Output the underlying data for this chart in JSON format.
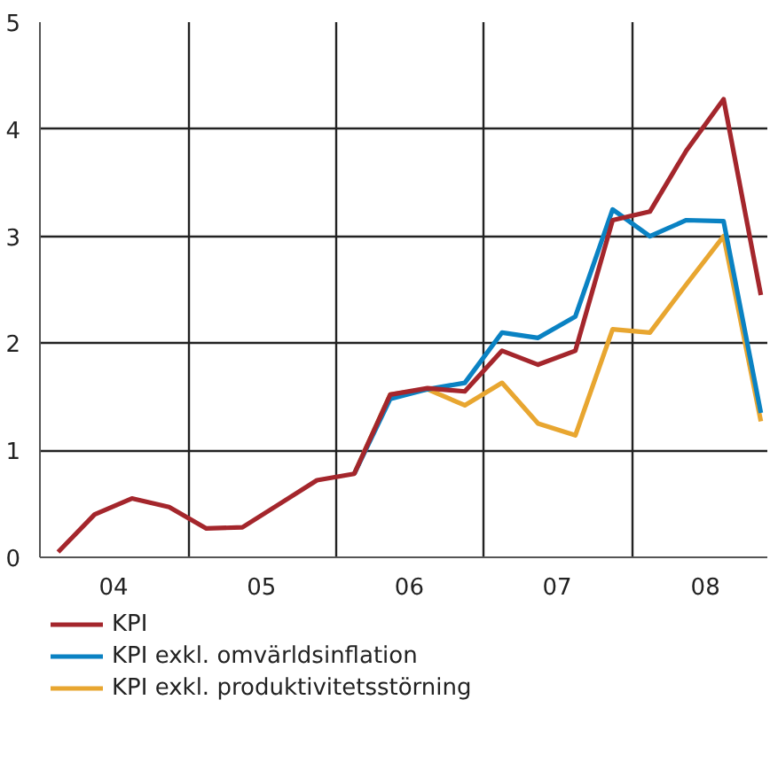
{
  "chart_data": {
    "type": "line",
    "x": [
      "2004-02-15",
      "2004-05-15",
      "2004-08-15",
      "2004-11-15",
      "2005-02-15",
      "2005-05-15",
      "2005-08-15",
      "2005-11-15",
      "2006-02-15",
      "2006-05-15",
      "2006-08-15",
      "2006-11-15",
      "2007-02-15",
      "2007-05-15",
      "2007-08-15",
      "2007-11-15",
      "2008-02-15",
      "2008-05-15",
      "2008-08-15",
      "2008-11-15"
    ],
    "series": [
      {
        "name": "KPI",
        "color": "#a4262c",
        "values": [
          0.05,
          0.4,
          0.55,
          0.47,
          0.27,
          0.28,
          0.5,
          0.72,
          0.78,
          1.52,
          1.58,
          1.55,
          1.93,
          1.8,
          1.93,
          3.15,
          3.23,
          3.8,
          4.28,
          2.45
        ]
      },
      {
        "name": "KPI exkl. omvärldsinflation",
        "color": "#0a82c3",
        "values": [
          null,
          null,
          null,
          null,
          null,
          null,
          null,
          null,
          0.78,
          1.48,
          1.57,
          1.63,
          2.1,
          2.05,
          2.25,
          3.25,
          3.0,
          3.15,
          3.14,
          1.35
        ]
      },
      {
        "name": "KPI exkl. produktivitetsstörning",
        "color": "#e8a630",
        "values": [
          null,
          null,
          null,
          null,
          null,
          null,
          null,
          null,
          0.78,
          1.52,
          1.57,
          1.42,
          1.63,
          1.25,
          1.14,
          2.13,
          2.1,
          2.55,
          3.0,
          1.27
        ]
      }
    ],
    "xlim": [
      "2004-01-01",
      "2008-12-01"
    ],
    "xticks": [
      {
        "value": "2004-07-01",
        "label": "04"
      },
      {
        "value": "2005-01-01",
        "label": null
      },
      {
        "value": "2005-07-01",
        "label": "05"
      },
      {
        "value": "2006-01-01",
        "label": null
      },
      {
        "value": "2006-07-01",
        "label": "06"
      },
      {
        "value": "2007-01-01",
        "label": null
      },
      {
        "value": "2007-07-01",
        "label": "07"
      },
      {
        "value": "2008-01-01",
        "label": null
      },
      {
        "value": "2008-07-01",
        "label": "08"
      }
    ],
    "ylim": [
      0,
      5
    ],
    "yticks": [
      0,
      1,
      2,
      3,
      4,
      5
    ],
    "grid": true,
    "legend": "bottom",
    "line_style": "solid"
  }
}
